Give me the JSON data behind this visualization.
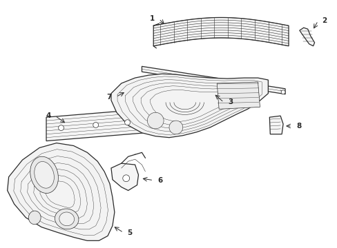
{
  "background_color": "#ffffff",
  "line_color": "#2a2a2a",
  "figsize": [
    4.89,
    3.6
  ],
  "dpi": 100,
  "lw_main": 0.9,
  "lw_thin": 0.5,
  "lw_detail": 0.35
}
